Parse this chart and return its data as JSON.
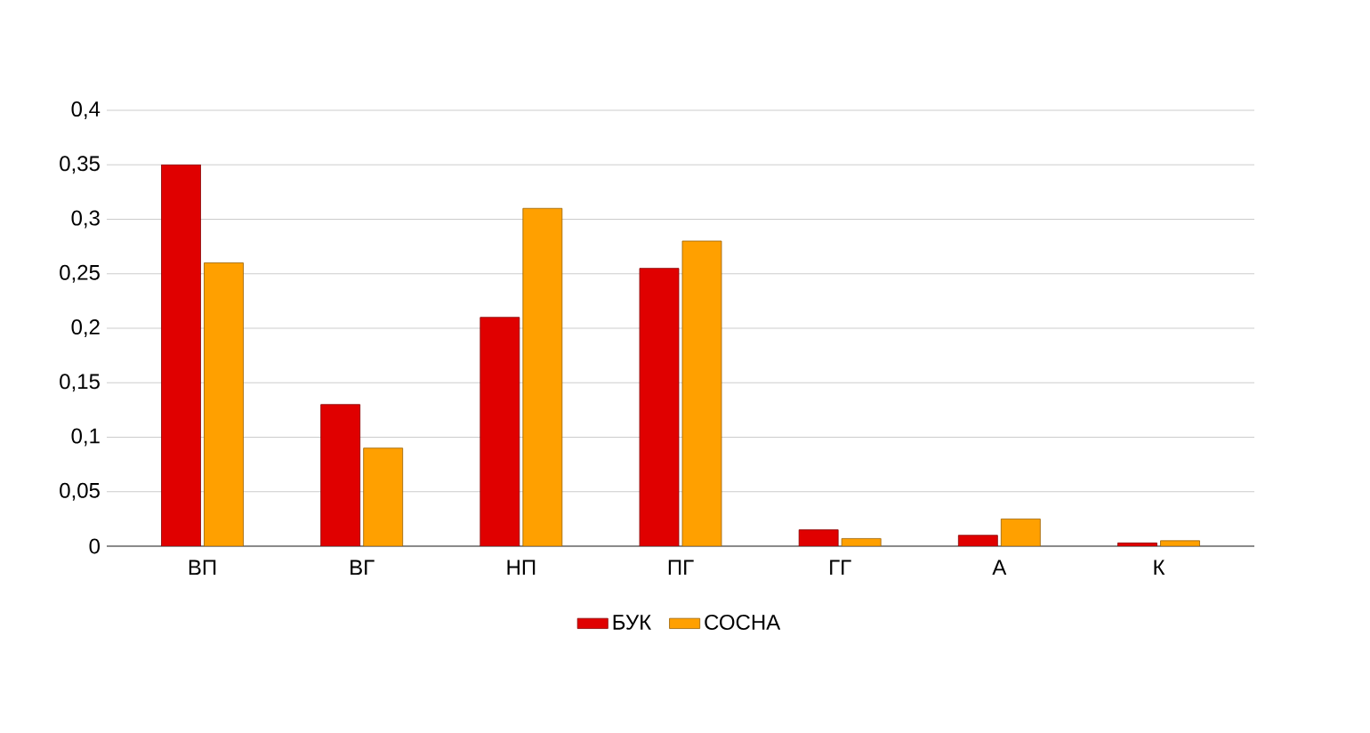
{
  "chart_data": {
    "type": "bar",
    "categories": [
      "ВП",
      "ВГ",
      "НП",
      "ПГ",
      "ГГ",
      "А",
      "К"
    ],
    "series": [
      {
        "name": "БУК",
        "color": "#e00000",
        "values": [
          0.35,
          0.13,
          0.21,
          0.255,
          0.015,
          0.01,
          0.003
        ]
      },
      {
        "name": "СОСНА",
        "color": "#ffa000",
        "values": [
          0.26,
          0.09,
          0.31,
          0.28,
          0.007,
          0.025,
          0.005
        ]
      }
    ],
    "ylim": [
      0,
      0.4
    ],
    "yticks": [
      {
        "value": 0,
        "label": "0"
      },
      {
        "value": 0.05,
        "label": "0,05"
      },
      {
        "value": 0.1,
        "label": "0,1"
      },
      {
        "value": 0.15,
        "label": "0,15"
      },
      {
        "value": 0.2,
        "label": "0,2"
      },
      {
        "value": 0.25,
        "label": "0,25"
      },
      {
        "value": 0.3,
        "label": "0,3"
      },
      {
        "value": 0.35,
        "label": "0,35"
      },
      {
        "value": 0.4,
        "label": "0,4"
      }
    ],
    "grid": "y",
    "legend": "bottom"
  }
}
